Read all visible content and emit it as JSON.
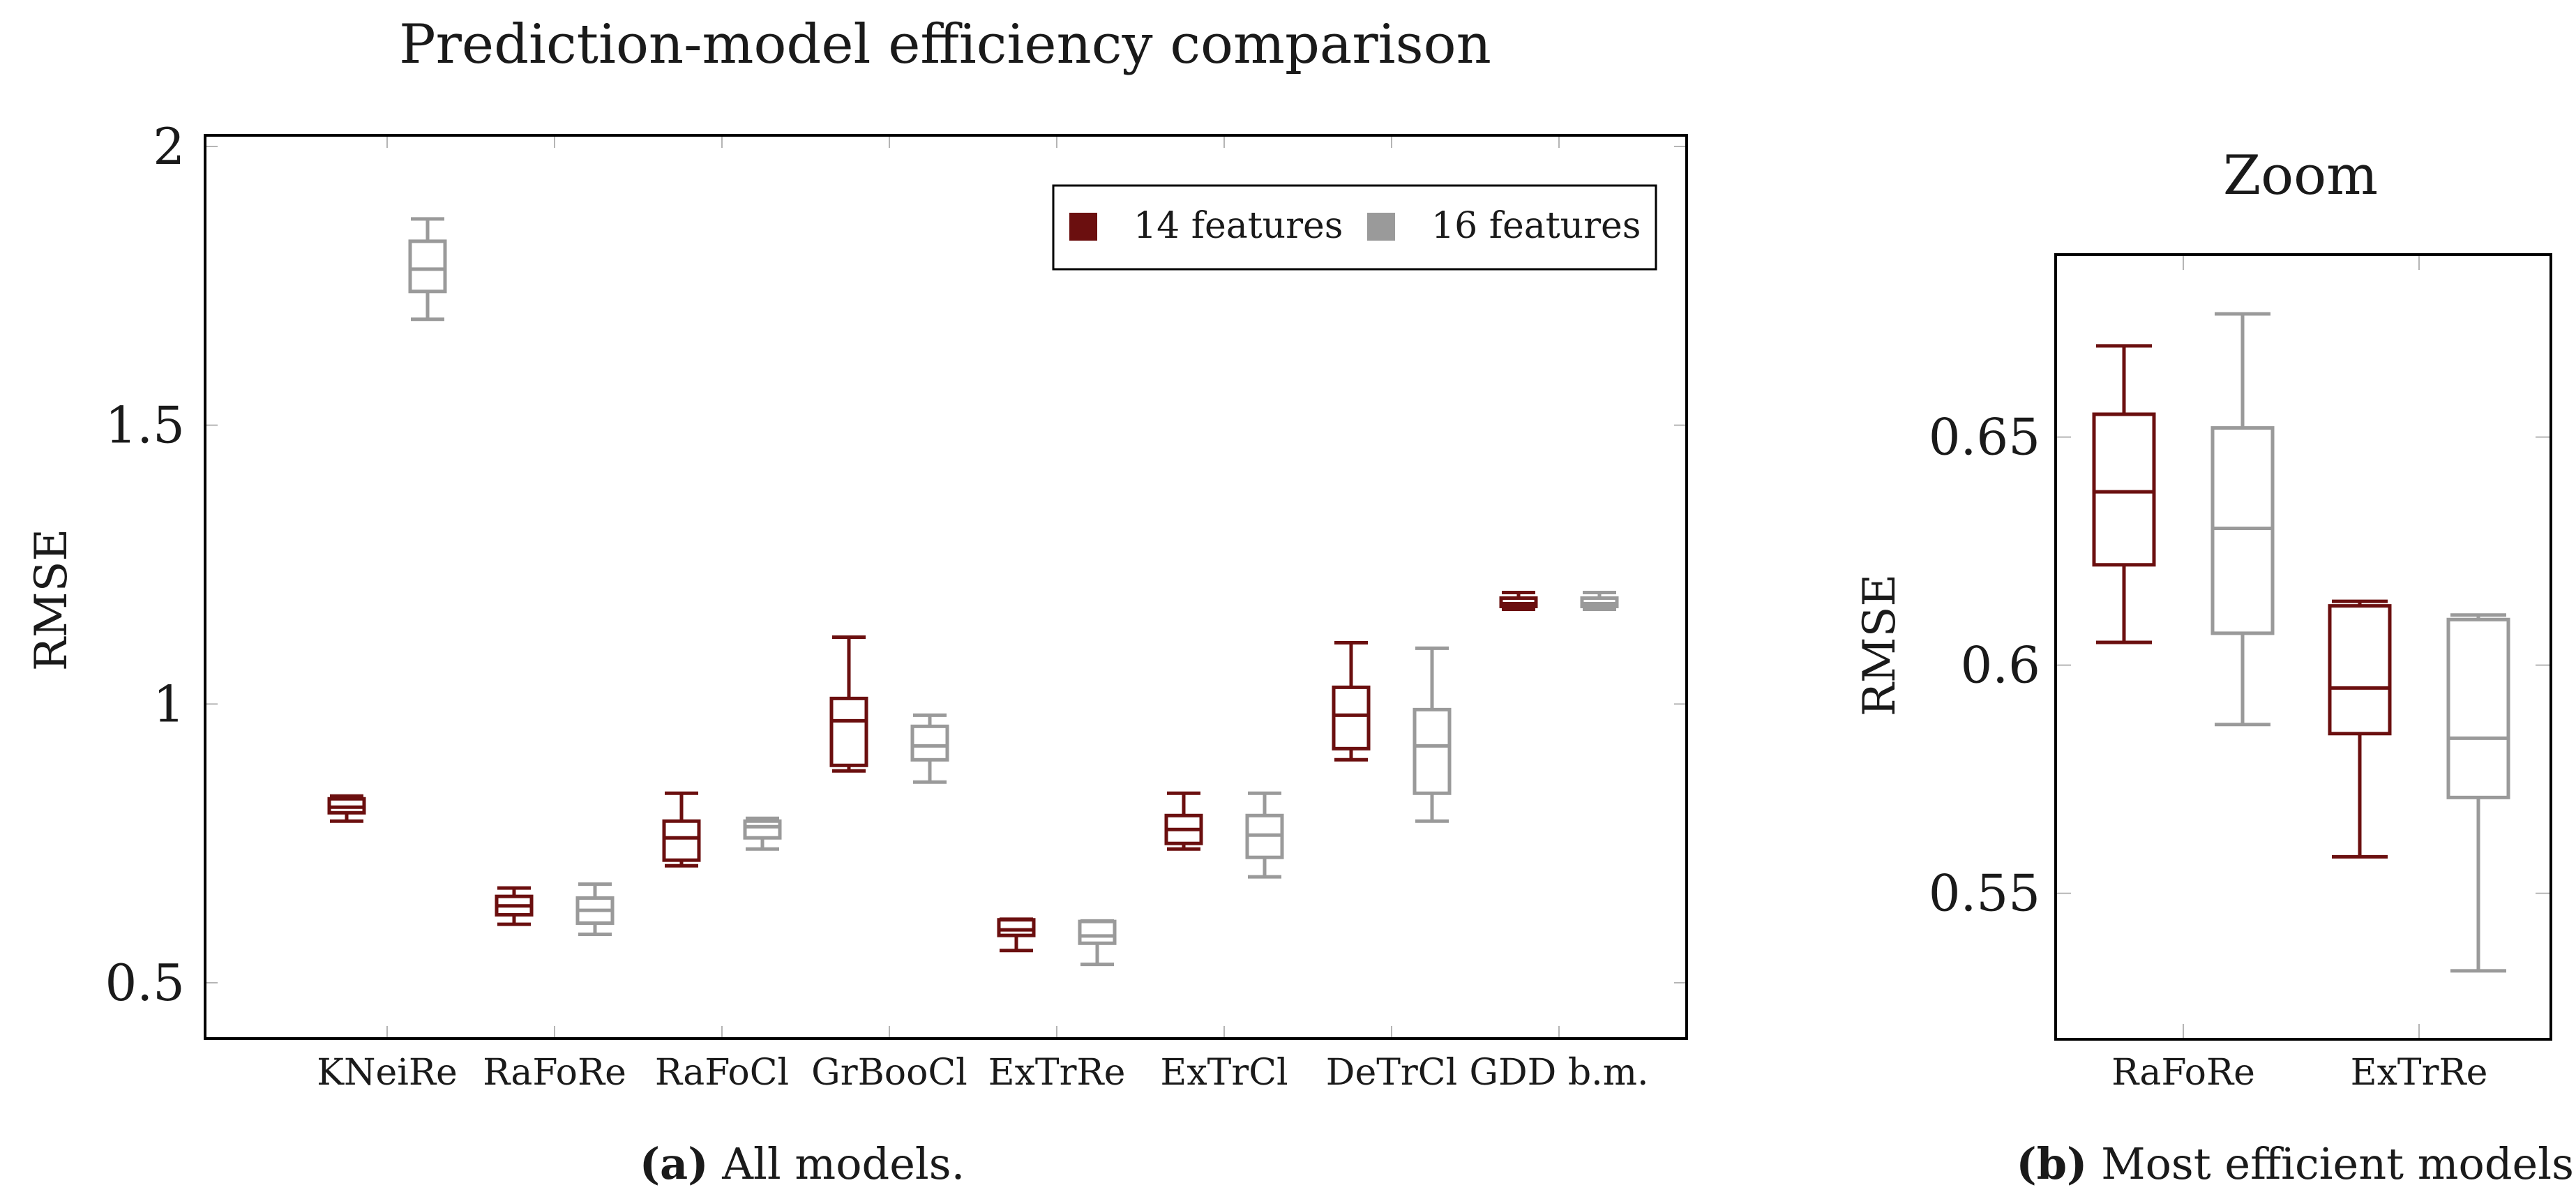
{
  "chart_data": [
    {
      "type": "boxplot",
      "title": "Prediction-model efficiency comparison",
      "xlabel": "",
      "ylabel": "RMSE",
      "ylim": [
        0.4,
        2.02
      ],
      "yticks": [
        0.5,
        1,
        1.5,
        2
      ],
      "ytick_labels": [
        "0.5",
        "1",
        "1.5",
        "2"
      ],
      "categories": [
        "KNeiRe",
        "RaFoRe",
        "RaFoCl",
        "GrBooCl",
        "ExTrRe",
        "ExTrCl",
        "DeTrCl",
        "GDD b.m."
      ],
      "legend_position": "top-right",
      "series": [
        {
          "name": "14 features",
          "color": "#6b0f0f",
          "boxes": [
            {
              "min": 0.79,
              "q1": 0.805,
              "median": 0.815,
              "q3": 0.83,
              "max": 0.835
            },
            {
              "min": 0.605,
              "q1": 0.622,
              "median": 0.638,
              "q3": 0.655,
              "max": 0.67
            },
            {
              "min": 0.71,
              "q1": 0.72,
              "median": 0.76,
              "q3": 0.79,
              "max": 0.84
            },
            {
              "min": 0.88,
              "q1": 0.89,
              "median": 0.97,
              "q3": 1.01,
              "max": 1.12
            },
            {
              "min": 0.558,
              "q1": 0.585,
              "median": 0.595,
              "q3": 0.613,
              "max": 0.614
            },
            {
              "min": 0.74,
              "q1": 0.75,
              "median": 0.775,
              "q3": 0.8,
              "max": 0.84
            },
            {
              "min": 0.9,
              "q1": 0.92,
              "median": 0.98,
              "q3": 1.03,
              "max": 1.11
            },
            {
              "min": 1.17,
              "q1": 1.175,
              "median": 1.18,
              "q3": 1.19,
              "max": 1.2
            }
          ]
        },
        {
          "name": "16 features",
          "color": "#9a9a9a",
          "boxes": [
            {
              "min": 1.69,
              "q1": 1.74,
              "median": 1.78,
              "q3": 1.83,
              "max": 1.87
            },
            {
              "min": 0.587,
              "q1": 0.607,
              "median": 0.63,
              "q3": 0.652,
              "max": 0.677
            },
            {
              "min": 0.74,
              "q1": 0.76,
              "median": 0.78,
              "q3": 0.79,
              "max": 0.795
            },
            {
              "min": 0.86,
              "q1": 0.9,
              "median": 0.925,
              "q3": 0.96,
              "max": 0.98
            },
            {
              "min": 0.533,
              "q1": 0.571,
              "median": 0.584,
              "q3": 0.61,
              "max": 0.611
            },
            {
              "min": 0.69,
              "q1": 0.725,
              "median": 0.765,
              "q3": 0.8,
              "max": 0.84
            },
            {
              "min": 0.79,
              "q1": 0.84,
              "median": 0.925,
              "q3": 0.99,
              "max": 1.1
            },
            {
              "min": 1.17,
              "q1": 1.175,
              "median": 1.18,
              "q3": 1.19,
              "max": 1.2
            }
          ]
        }
      ],
      "caption_label": "(a)",
      "caption_text": "All models."
    },
    {
      "type": "boxplot",
      "title": "Zoom",
      "xlabel": "",
      "ylabel": "RMSE",
      "ylim": [
        0.518,
        0.69
      ],
      "yticks": [
        0.55,
        0.6,
        0.65
      ],
      "ytick_labels": [
        "0.55",
        "0.6",
        "0.65"
      ],
      "categories": [
        "RaFoRe",
        "ExTrRe"
      ],
      "series": [
        {
          "name": "14 features",
          "color": "#6b0f0f",
          "boxes": [
            {
              "min": 0.605,
              "q1": 0.622,
              "median": 0.638,
              "q3": 0.655,
              "max": 0.67
            },
            {
              "min": 0.558,
              "q1": 0.585,
              "median": 0.595,
              "q3": 0.613,
              "max": 0.614
            }
          ]
        },
        {
          "name": "16 features",
          "color": "#9a9a9a",
          "boxes": [
            {
              "min": 0.587,
              "q1": 0.607,
              "median": 0.63,
              "q3": 0.652,
              "max": 0.677
            },
            {
              "min": 0.533,
              "q1": 0.571,
              "median": 0.584,
              "q3": 0.61,
              "max": 0.611
            }
          ]
        }
      ],
      "caption_label": "(b)",
      "caption_text": "Most efficient models."
    }
  ]
}
